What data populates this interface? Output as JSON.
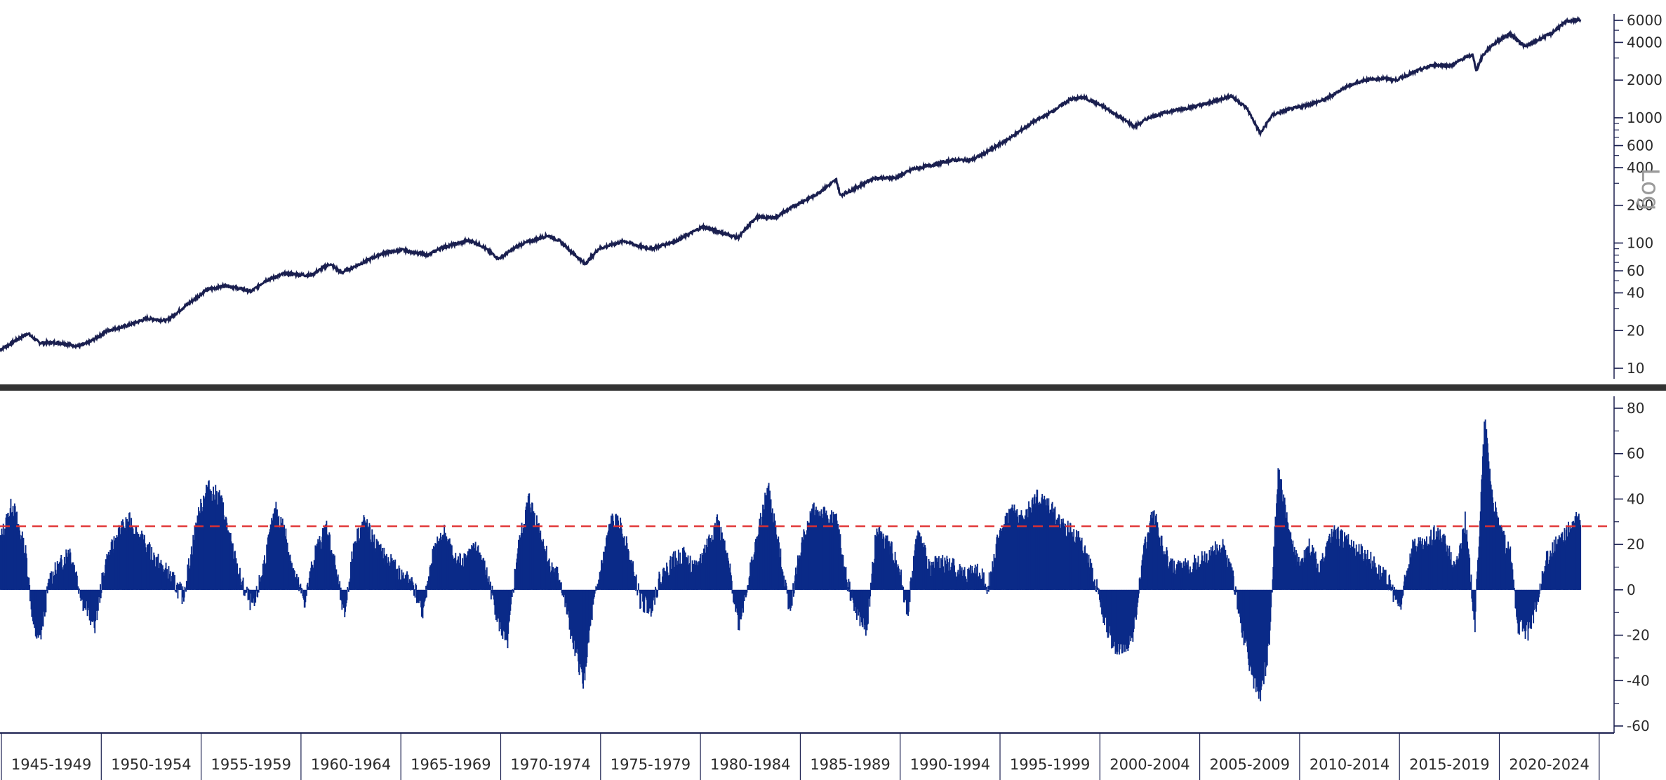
{
  "colors": {
    "price_line": "#1a1f4f",
    "bars": "#0a2a88",
    "threshold": "#e03030",
    "divider": "#333333",
    "axis": "#1a1f4f"
  },
  "chart_data": [
    {
      "type": "line",
      "panel": "top",
      "title": "",
      "y_scale": "log",
      "scale_label": "Log",
      "ylim": [
        9,
        6400
      ],
      "y_ticks": [
        10,
        20,
        40,
        60,
        100,
        200,
        400,
        600,
        1000,
        2000,
        4000,
        6000
      ],
      "x_range": [
        1945,
        2025.5
      ],
      "series": [
        {
          "x": [
            1945.0,
            1946.4,
            1947.0,
            1948.0,
            1949.0,
            1949.5,
            1950.5,
            1951.5,
            1952.5,
            1953.5,
            1954.5,
            1955.5,
            1956.5,
            1957.8,
            1958.5,
            1959.5,
            1960.8,
            1961.8,
            1962.4,
            1963.5,
            1964.5,
            1965.5,
            1966.8,
            1967.5,
            1968.9,
            1969.5,
            1970.4,
            1971.5,
            1972.9,
            1973.5,
            1974.8,
            1975.5,
            1976.8,
            1977.5,
            1978.2,
            1979.5,
            1980.8,
            1981.5,
            1982.6,
            1983.5,
            1984.5,
            1985.5,
            1986.5,
            1987.6,
            1987.8,
            1988.5,
            1989.5,
            1990.6,
            1991.5,
            1992.5,
            1993.5,
            1994.5,
            1995.5,
            1996.5,
            1997.5,
            1998.5,
            1999.5,
            2000.2,
            2000.8,
            2001.5,
            2002.8,
            2003.5,
            2004.5,
            2005.5,
            2006.5,
            2007.7,
            2008.5,
            2009.2,
            2009.8,
            2010.5,
            2011.5,
            2012.5,
            2013.5,
            2014.5,
            2015.5,
            2016.1,
            2017.0,
            2018.0,
            2018.9,
            2019.5,
            2020.0,
            2020.2,
            2020.5,
            2021.0,
            2021.9,
            2022.7,
            2023.5,
            2024.0,
            2024.8,
            2025.5
          ],
          "y": [
            14,
            19,
            16,
            16,
            15,
            16,
            20,
            22,
            25,
            24,
            32,
            42,
            46,
            41,
            50,
            57,
            55,
            68,
            58,
            70,
            83,
            88,
            80,
            92,
            105,
            96,
            75,
            97,
            115,
            104,
            68,
            90,
            104,
            95,
            90,
            105,
            135,
            125,
            110,
            160,
            160,
            200,
            240,
            320,
            240,
            270,
            330,
            330,
            390,
            420,
            460,
            460,
            560,
            700,
            900,
            1100,
            1400,
            1450,
            1320,
            1150,
            850,
            1000,
            1120,
            1200,
            1300,
            1500,
            1200,
            750,
            1050,
            1150,
            1250,
            1400,
            1750,
            2000,
            2070,
            2000,
            2300,
            2650,
            2600,
            2950,
            3200,
            2400,
            3100,
            3800,
            4700,
            3700,
            4300,
            4700,
            5900,
            6100
          ]
        }
      ]
    },
    {
      "type": "bar",
      "panel": "bottom",
      "title": "",
      "ylim": [
        -60,
        80
      ],
      "y_ticks": [
        -60,
        -40,
        -20,
        0,
        20,
        40,
        60,
        80
      ],
      "threshold": 28,
      "x_range": [
        1945,
        2025.5
      ],
      "series": [
        {
          "x": [
            1945.0,
            1945.6,
            1946.3,
            1946.7,
            1947.0,
            1947.5,
            1948.0,
            1948.5,
            1949.2,
            1949.8,
            1950.3,
            1951.0,
            1951.6,
            1952.3,
            1953.0,
            1953.7,
            1954.3,
            1955.0,
            1955.5,
            1956.2,
            1956.8,
            1957.3,
            1957.9,
            1958.5,
            1959.0,
            1959.5,
            1960.0,
            1960.5,
            1961.0,
            1961.6,
            1962.1,
            1962.5,
            1963.0,
            1963.5,
            1964.2,
            1964.8,
            1965.4,
            1966.0,
            1966.5,
            1967.0,
            1967.6,
            1968.2,
            1968.8,
            1969.3,
            1969.9,
            1970.4,
            1970.8,
            1971.3,
            1971.9,
            1972.5,
            1973.0,
            1973.5,
            1974.2,
            1974.7,
            1975.1,
            1975.6,
            1976.1,
            1976.6,
            1977.1,
            1977.6,
            1978.1,
            1978.6,
            1979.2,
            1979.8,
            1980.4,
            1980.9,
            1981.5,
            1982.1,
            1982.6,
            1983.1,
            1983.6,
            1984.1,
            1984.7,
            1985.2,
            1985.8,
            1986.4,
            1987.0,
            1987.6,
            1988.0,
            1988.5,
            1989.1,
            1989.6,
            1990.2,
            1990.7,
            1991.2,
            1991.7,
            1992.3,
            1992.9,
            1993.5,
            1994.1,
            1994.7,
            1995.3,
            1995.9,
            1996.5,
            1997.1,
            1997.7,
            1998.3,
            1998.9,
            1999.5,
            2000.1,
            2000.7,
            2001.2,
            2001.7,
            2002.2,
            2002.7,
            2003.2,
            2003.7,
            2004.2,
            2004.8,
            2005.4,
            2006.0,
            2006.6,
            2007.2,
            2007.8,
            2008.3,
            2008.8,
            2009.2,
            2009.6,
            2010.1,
            2010.6,
            2011.1,
            2011.6,
            2012.2,
            2012.8,
            2013.4,
            2014.0,
            2014.6,
            2015.2,
            2015.8,
            2016.3,
            2016.9,
            2017.5,
            2018.1,
            2018.6,
            2019.1,
            2019.6,
            2020.1,
            2020.3,
            2020.6,
            2021.0,
            2021.4,
            2021.9,
            2022.3,
            2022.8,
            2023.3,
            2023.8,
            2024.3,
            2024.8,
            2025.2
          ],
          "values": [
            22,
            38,
            15,
            -18,
            -22,
            5,
            10,
            18,
            -5,
            -15,
            10,
            25,
            30,
            20,
            12,
            5,
            -3,
            30,
            45,
            40,
            18,
            2,
            -8,
            15,
            35,
            25,
            5,
            -5,
            15,
            28,
            8,
            -12,
            20,
            30,
            18,
            12,
            6,
            3,
            -10,
            15,
            25,
            12,
            15,
            18,
            3,
            -15,
            -25,
            15,
            40,
            25,
            10,
            5,
            -25,
            -40,
            -12,
            10,
            30,
            28,
            12,
            -5,
            -8,
            5,
            12,
            15,
            8,
            18,
            30,
            10,
            -15,
            5,
            25,
            45,
            15,
            -8,
            20,
            35,
            32,
            30,
            8,
            -8,
            -18,
            25,
            20,
            12,
            -10,
            25,
            10,
            12,
            10,
            6,
            8,
            2,
            25,
            35,
            30,
            40,
            38,
            30,
            25,
            20,
            5,
            -12,
            -25,
            -25,
            -20,
            15,
            35,
            18,
            8,
            10,
            12,
            15,
            20,
            5,
            -20,
            -40,
            -45,
            -25,
            55,
            25,
            10,
            20,
            8,
            25,
            22,
            18,
            15,
            8,
            2,
            -8,
            20,
            18,
            25,
            20,
            8,
            30,
            -15,
            22,
            75,
            40,
            25,
            15,
            -15,
            -18,
            -5,
            15,
            20,
            25,
            30
          ]
        }
      ]
    }
  ],
  "x_axis": {
    "periods": [
      "1945-1949",
      "1950-1954",
      "1955-1959",
      "1960-1964",
      "1965-1969",
      "1970-1974",
      "1975-1979",
      "1980-1984",
      "1985-1989",
      "1990-1994",
      "1995-1999",
      "2000-2004",
      "2005-2009",
      "2010-2014",
      "2015-2019",
      "2020-2024"
    ]
  }
}
